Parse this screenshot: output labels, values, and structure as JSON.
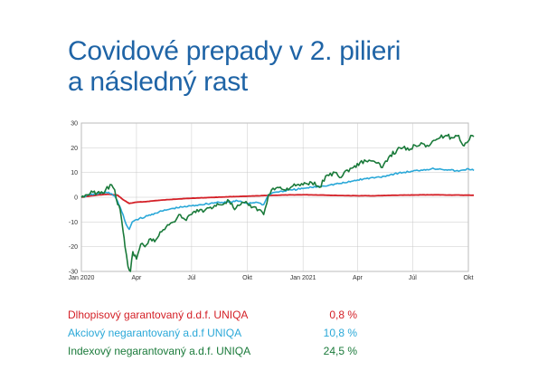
{
  "title_lines": [
    "Covidové prepady v 2. pilieri",
    "a následný rast"
  ],
  "chart_data": {
    "type": "line",
    "title": "Covidové prepady v 2. pilieri a následný rast",
    "xlabel": "",
    "ylabel": "",
    "x_range": [
      "2020-01",
      "2021-10"
    ],
    "ylim": [
      -30,
      30
    ],
    "y_ticks": [
      30,
      20,
      10,
      0,
      -10,
      -20,
      -30
    ],
    "x_tick_labels": [
      {
        "x": "2020-01",
        "label": "Jan 2020"
      },
      {
        "x": "2020-04",
        "label": "Apr"
      },
      {
        "x": "2020-07",
        "label": "Júl"
      },
      {
        "x": "2020-10",
        "label": "Okt"
      },
      {
        "x": "2021-01",
        "label": "Jan 2021"
      },
      {
        "x": "2021-04",
        "label": "Apr"
      },
      {
        "x": "2021-07",
        "label": "Júl"
      },
      {
        "x": "2021-10",
        "label": "Okt"
      }
    ],
    "grid": true,
    "series": [
      {
        "name": "Dlhopisový garantovaný d.d.f. UNIQA",
        "final_label": "0,8 %",
        "color": "#d42027",
        "points": [
          [
            "2020-01-01",
            0.0
          ],
          [
            "2020-01-15",
            0.5
          ],
          [
            "2020-02-01",
            1.0
          ],
          [
            "2020-02-15",
            1.2
          ],
          [
            "2020-03-01",
            0.8
          ],
          [
            "2020-03-10",
            -1.0
          ],
          [
            "2020-03-20",
            -2.5
          ],
          [
            "2020-04-01",
            -2.0
          ],
          [
            "2020-04-15",
            -1.8
          ],
          [
            "2020-05-01",
            -1.4
          ],
          [
            "2020-06-01",
            -0.8
          ],
          [
            "2020-07-01",
            -0.4
          ],
          [
            "2020-08-01",
            -0.1
          ],
          [
            "2020-09-01",
            0.2
          ],
          [
            "2020-10-01",
            0.4
          ],
          [
            "2020-11-01",
            0.7
          ],
          [
            "2020-12-01",
            0.9
          ],
          [
            "2021-01-01",
            1.0
          ],
          [
            "2021-02-01",
            0.9
          ],
          [
            "2021-03-01",
            0.7
          ],
          [
            "2021-04-01",
            0.6
          ],
          [
            "2021-05-01",
            0.6
          ],
          [
            "2021-06-01",
            0.8
          ],
          [
            "2021-07-01",
            0.9
          ],
          [
            "2021-08-01",
            1.0
          ],
          [
            "2021-09-01",
            0.9
          ],
          [
            "2021-10-10",
            0.8
          ]
        ]
      },
      {
        "name": "Akciový negarantovaný a.d.f UNIQA",
        "final_label": "10,8 %",
        "color": "#2aa8d8",
        "points": [
          [
            "2020-01-01",
            0.0
          ],
          [
            "2020-01-15",
            1.0
          ],
          [
            "2020-02-01",
            1.5
          ],
          [
            "2020-02-15",
            2.0
          ],
          [
            "2020-02-25",
            0.5
          ],
          [
            "2020-03-05",
            -4.0
          ],
          [
            "2020-03-15",
            -11.0
          ],
          [
            "2020-03-20",
            -13.0
          ],
          [
            "2020-03-25",
            -10.0
          ],
          [
            "2020-04-01",
            -9.0
          ],
          [
            "2020-04-15",
            -8.0
          ],
          [
            "2020-05-01",
            -6.5
          ],
          [
            "2020-05-15",
            -5.5
          ],
          [
            "2020-06-01",
            -4.5
          ],
          [
            "2020-06-15",
            -4.0
          ],
          [
            "2020-07-01",
            -3.5
          ],
          [
            "2020-07-15",
            -3.0
          ],
          [
            "2020-08-01",
            -2.5
          ],
          [
            "2020-08-15",
            -2.0
          ],
          [
            "2020-09-01",
            -2.0
          ],
          [
            "2020-09-15",
            -1.5
          ],
          [
            "2020-10-01",
            -2.5
          ],
          [
            "2020-10-15",
            -2.0
          ],
          [
            "2020-10-28",
            -3.0
          ],
          [
            "2020-11-05",
            1.0
          ],
          [
            "2020-11-15",
            2.0
          ],
          [
            "2020-12-01",
            2.5
          ],
          [
            "2020-12-15",
            3.0
          ],
          [
            "2021-01-01",
            3.5
          ],
          [
            "2021-01-15",
            4.0
          ],
          [
            "2021-02-01",
            4.5
          ],
          [
            "2021-02-15",
            5.0
          ],
          [
            "2021-03-01",
            5.5
          ],
          [
            "2021-03-15",
            6.0
          ],
          [
            "2021-04-01",
            7.0
          ],
          [
            "2021-04-15",
            7.5
          ],
          [
            "2021-05-01",
            8.0
          ],
          [
            "2021-05-15",
            8.5
          ],
          [
            "2021-06-01",
            9.5
          ],
          [
            "2021-06-15",
            10.0
          ],
          [
            "2021-07-01",
            10.5
          ],
          [
            "2021-07-15",
            11.0
          ],
          [
            "2021-08-01",
            11.5
          ],
          [
            "2021-08-15",
            11.5
          ],
          [
            "2021-09-01",
            11.0
          ],
          [
            "2021-09-15",
            10.5
          ],
          [
            "2021-10-01",
            11.5
          ],
          [
            "2021-10-10",
            10.8
          ]
        ]
      },
      {
        "name": "Indexový negarantovaný a.d.f. UNIQA",
        "final_label": "24,5 %",
        "color": "#1a7a3a",
        "points": [
          [
            "2020-01-01",
            0.0
          ],
          [
            "2020-01-10",
            1.0
          ],
          [
            "2020-01-20",
            2.0
          ],
          [
            "2020-02-01",
            1.5
          ],
          [
            "2020-02-10",
            3.0
          ],
          [
            "2020-02-20",
            5.0
          ],
          [
            "2020-02-25",
            3.0
          ],
          [
            "2020-03-01",
            -3.0
          ],
          [
            "2020-03-05",
            -5.0
          ],
          [
            "2020-03-10",
            -14.0
          ],
          [
            "2020-03-13",
            -20.0
          ],
          [
            "2020-03-18",
            -28.0
          ],
          [
            "2020-03-22",
            -30.0
          ],
          [
            "2020-03-26",
            -22.0
          ],
          [
            "2020-04-01",
            -25.0
          ],
          [
            "2020-04-08",
            -19.0
          ],
          [
            "2020-04-15",
            -20.0
          ],
          [
            "2020-04-22",
            -17.0
          ],
          [
            "2020-05-01",
            -18.0
          ],
          [
            "2020-05-10",
            -14.0
          ],
          [
            "2020-05-20",
            -12.0
          ],
          [
            "2020-06-01",
            -10.0
          ],
          [
            "2020-06-10",
            -7.0
          ],
          [
            "2020-06-20",
            -9.0
          ],
          [
            "2020-07-01",
            -7.0
          ],
          [
            "2020-07-10",
            -5.0
          ],
          [
            "2020-07-20",
            -6.0
          ],
          [
            "2020-08-01",
            -4.0
          ],
          [
            "2020-08-15",
            -3.0
          ],
          [
            "2020-09-01",
            -1.5
          ],
          [
            "2020-09-10",
            -5.0
          ],
          [
            "2020-09-20",
            -3.0
          ],
          [
            "2020-10-01",
            -2.5
          ],
          [
            "2020-10-10",
            -4.0
          ],
          [
            "2020-10-20",
            -5.0
          ],
          [
            "2020-10-28",
            -7.0
          ],
          [
            "2020-11-05",
            1.0
          ],
          [
            "2020-11-10",
            3.0
          ],
          [
            "2020-11-20",
            4.0
          ],
          [
            "2020-12-01",
            3.0
          ],
          [
            "2020-12-15",
            4.5
          ],
          [
            "2021-01-01",
            5.0
          ],
          [
            "2021-01-15",
            6.0
          ],
          [
            "2021-01-28",
            4.0
          ],
          [
            "2021-02-10",
            9.0
          ],
          [
            "2021-02-25",
            10.0
          ],
          [
            "2021-03-05",
            8.0
          ],
          [
            "2021-03-15",
            11.0
          ],
          [
            "2021-03-25",
            12.0
          ],
          [
            "2021-04-05",
            14.0
          ],
          [
            "2021-04-20",
            15.0
          ],
          [
            "2021-05-01",
            14.0
          ],
          [
            "2021-05-12",
            12.0
          ],
          [
            "2021-05-25",
            17.0
          ],
          [
            "2021-06-05",
            19.0
          ],
          [
            "2021-06-15",
            20.0
          ],
          [
            "2021-06-25",
            19.0
          ],
          [
            "2021-07-05",
            21.0
          ],
          [
            "2021-07-15",
            22.0
          ],
          [
            "2021-07-25",
            21.0
          ],
          [
            "2021-08-05",
            23.0
          ],
          [
            "2021-08-15",
            24.0
          ],
          [
            "2021-08-25",
            25.0
          ],
          [
            "2021-09-05",
            24.0
          ],
          [
            "2021-09-15",
            25.0
          ],
          [
            "2021-09-22",
            21.0
          ],
          [
            "2021-09-28",
            22.0
          ],
          [
            "2021-10-05",
            25.0
          ],
          [
            "2021-10-10",
            24.5
          ]
        ]
      }
    ]
  },
  "legend": [
    {
      "label": "Dlhopisový garantovaný d.d.f. UNIQA",
      "value": "0,8 %",
      "color": "#d42027"
    },
    {
      "label": "Akciový negarantovaný a.d.f UNIQA",
      "value": "10,8 %",
      "color": "#2aa8d8"
    },
    {
      "label": "Indexový negarantovaný a.d.f. UNIQA",
      "value": "24,5 %",
      "color": "#1a7a3a"
    }
  ]
}
